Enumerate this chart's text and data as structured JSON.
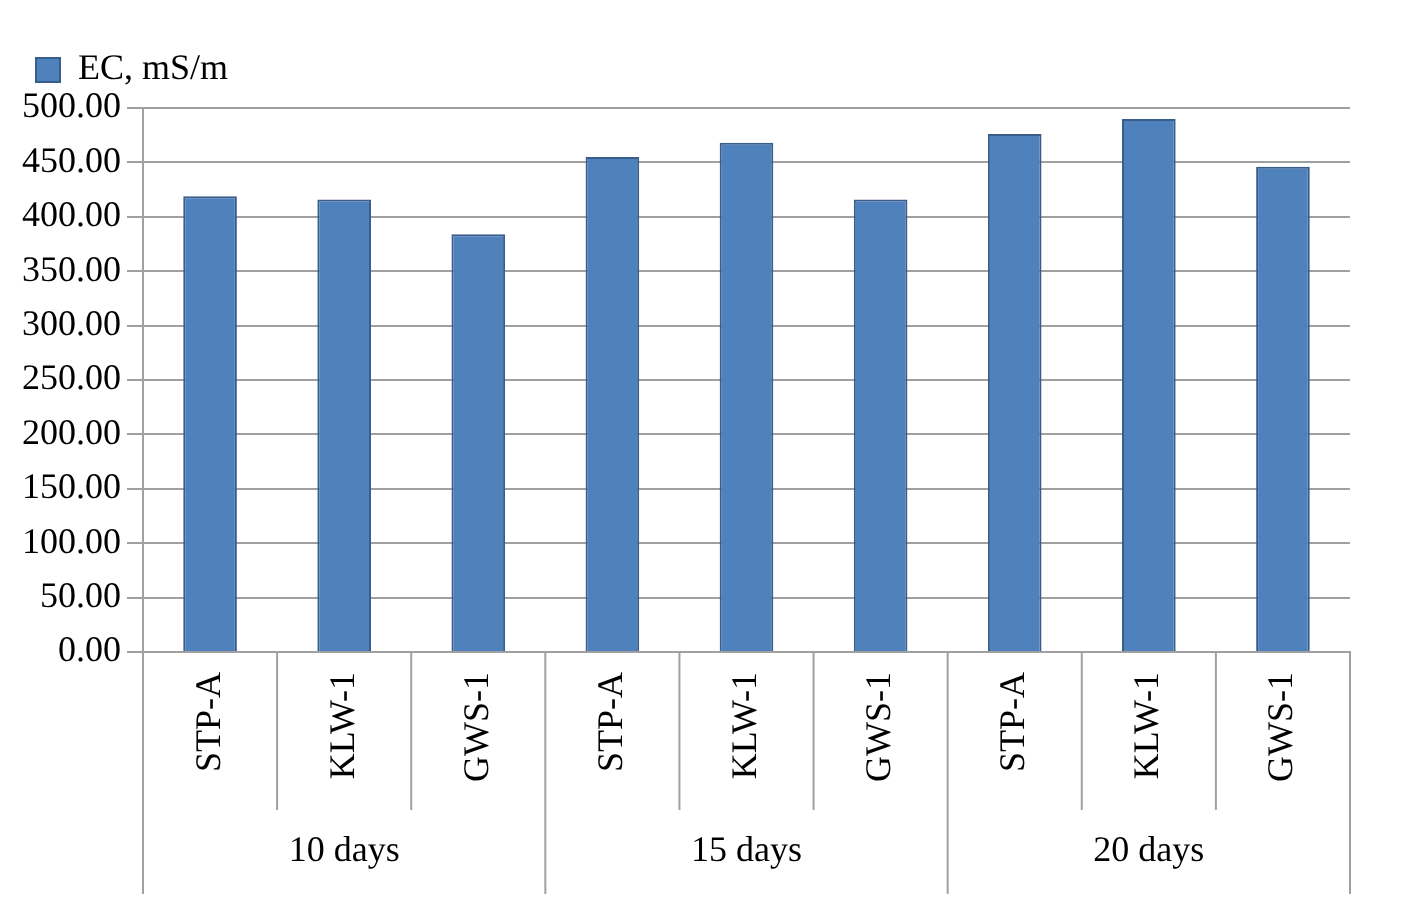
{
  "chart_data": {
    "type": "bar",
    "categories": [
      "STP-A",
      "KLW-1",
      "GWS-1",
      "STP-A",
      "KLW-1",
      "GWS-1",
      "STP-A",
      "KLW-1",
      "GWS-1"
    ],
    "series": [
      {
        "name": "EC, mS/m",
        "color": "#4f81bd",
        "values": [
          419,
          416,
          384,
          455,
          468,
          416,
          476,
          490,
          446
        ]
      }
    ],
    "annotations": [
      "10 days",
      "15 days",
      "20 days"
    ],
    "ylim": [
      0,
      500
    ],
    "yticks": [
      {
        "value": 0,
        "label": "0.00"
      },
      {
        "value": 50,
        "label": "50.00"
      },
      {
        "value": 100,
        "label": "100.00"
      },
      {
        "value": 150,
        "label": "150.00"
      },
      {
        "value": 200,
        "label": "200.00"
      },
      {
        "value": 250,
        "label": "250.00"
      },
      {
        "value": 300,
        "label": "300.00"
      },
      {
        "value": 350,
        "label": "350.00"
      },
      {
        "value": 400,
        "label": "400.00"
      },
      {
        "value": 450,
        "label": "450.00"
      },
      {
        "value": 500,
        "label": "500.00"
      }
    ],
    "grid": "y",
    "legend": "top left"
  }
}
